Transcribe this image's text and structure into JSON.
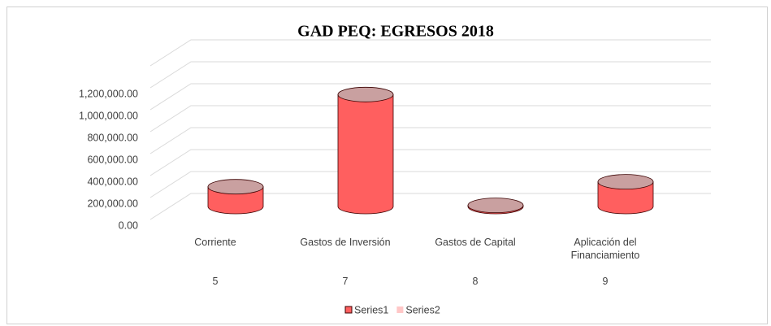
{
  "chart_data": {
    "type": "cylinder",
    "title": "GAD PEQ: EGRESOS 2018",
    "categories": [
      "Corriente",
      "Gastos de Inversión",
      "Gastos de Capital",
      "Aplicación del Financiamiento"
    ],
    "category_codes": [
      "5",
      "7",
      "8",
      "9"
    ],
    "series": [
      {
        "name": "Series1",
        "color": "#ff5f5f",
        "values": [
          180000,
          1020000,
          10000,
          225000
        ]
      },
      {
        "name": "Series2",
        "color": "#ffc7c7",
        "values": [
          null,
          null,
          null,
          null
        ]
      }
    ],
    "ylim": [
      0,
      1400000
    ],
    "yticks": [
      {
        "value": 0,
        "label": "0.00"
      },
      {
        "value": 200000,
        "label": "200,000.00"
      },
      {
        "value": 400000,
        "label": "400,000.00"
      },
      {
        "value": 600000,
        "label": "600,000.00"
      },
      {
        "value": 800000,
        "label": "800,000.00"
      },
      {
        "value": 1000000,
        "label": "1,000,000.00"
      },
      {
        "value": 1200000,
        "label": "1,200,000.00"
      }
    ],
    "grid": true,
    "legend": "bottom"
  }
}
